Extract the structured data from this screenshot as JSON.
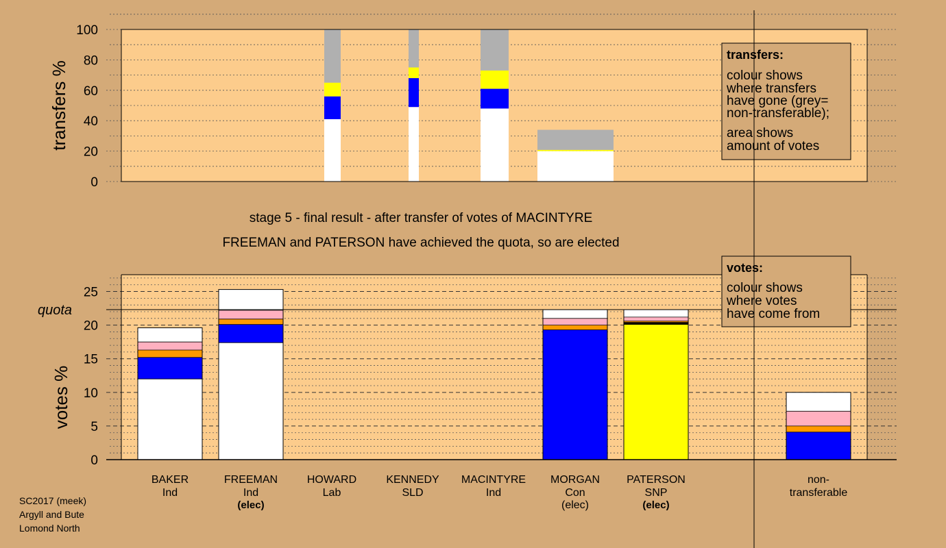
{
  "titles": {
    "stage": "stage 5 - final result - after transfer of votes of MACINTYRE",
    "elected": "FREEMAN and PATERSON have achieved the quota, so are elected"
  },
  "legend_transfers": {
    "title": "transfers:",
    "lines": [
      "colour shows",
      "where transfers",
      "have gone (grey=",
      "non-transferable);",
      "area shows",
      "amount of votes"
    ]
  },
  "legend_votes": {
    "title": "votes:",
    "lines": [
      "colour shows",
      "where votes",
      "have come from"
    ]
  },
  "footer": [
    "SC2017 (meek)",
    "Argyll and Bute",
    "Lomond North"
  ],
  "colors": {
    "background": "#d4aa78",
    "plot_bg": "#fccc8c",
    "white": "#ffffff",
    "pink": "#ffb0c0",
    "orange": "#ff9900",
    "blue": "#0000ff",
    "yellow": "#ffff00",
    "grey": "#b0b0b0",
    "black": "#000000"
  },
  "chart_data": [
    {
      "type": "bar",
      "stacked": true,
      "ylabel": "transfers %",
      "ylim": [
        0,
        100
      ],
      "yticks": [
        0,
        20,
        40,
        60,
        80,
        100
      ],
      "note": "bar width shows amount of votes transferred",
      "bars": [
        {
          "name": "HOWARD",
          "segments": [
            {
              "color": "white",
              "from": 0,
              "to": 41
            },
            {
              "color": "blue",
              "from": 41,
              "to": 56
            },
            {
              "color": "yellow",
              "from": 56,
              "to": 65
            },
            {
              "color": "grey",
              "from": 65,
              "to": 100
            }
          ]
        },
        {
          "name": "KENNEDY",
          "segments": [
            {
              "color": "white",
              "from": 0,
              "to": 49
            },
            {
              "color": "blue",
              "from": 49,
              "to": 68
            },
            {
              "color": "yellow",
              "from": 68,
              "to": 75
            },
            {
              "color": "grey",
              "from": 75,
              "to": 100
            }
          ]
        },
        {
          "name": "MACINTYRE",
          "segments": [
            {
              "color": "white",
              "from": 0,
              "to": 48
            },
            {
              "color": "blue",
              "from": 48,
              "to": 61
            },
            {
              "color": "yellow",
              "from": 61,
              "to": 73
            },
            {
              "color": "grey",
              "from": 73,
              "to": 100
            }
          ]
        },
        {
          "name": "MORGAN",
          "segments": [
            {
              "color": "white",
              "from": 0,
              "to": 20
            },
            {
              "color": "yellow",
              "from": 20,
              "to": 20.8
            },
            {
              "color": "grey",
              "from": 20.8,
              "to": 34
            }
          ]
        }
      ]
    },
    {
      "type": "bar",
      "stacked": true,
      "ylabel": "votes %",
      "ylim": [
        0,
        27.5
      ],
      "yticks": [
        0,
        5,
        10,
        15,
        20,
        25
      ],
      "quota": 22.3,
      "quota_label": "quota",
      "categories": [
        {
          "name": "BAKER",
          "party": "Ind",
          "status": "",
          "status_bold": false
        },
        {
          "name": "FREEMAN",
          "party": "Ind",
          "status": "(elec)",
          "status_bold": true
        },
        {
          "name": "HOWARD",
          "party": "Lab",
          "status": "",
          "status_bold": false
        },
        {
          "name": "KENNEDY",
          "party": "SLD",
          "status": "",
          "status_bold": false
        },
        {
          "name": "MACINTYRE",
          "party": "Ind",
          "status": "",
          "status_bold": false
        },
        {
          "name": "MORGAN",
          "party": "Con",
          "status": "(elec)",
          "status_bold": false
        },
        {
          "name": "PATERSON",
          "party": "SNP",
          "status": "(elec)",
          "status_bold": true
        },
        {
          "name": "non-",
          "party": "transferable",
          "status": "",
          "status_bold": false
        }
      ],
      "stacks": [
        [
          {
            "color": "white",
            "from": 0,
            "to": 12
          },
          {
            "color": "blue",
            "from": 12,
            "to": 15.2
          },
          {
            "color": "orange",
            "from": 15.2,
            "to": 16.3
          },
          {
            "color": "pink",
            "from": 16.3,
            "to": 17.5
          },
          {
            "color": "white",
            "from": 17.5,
            "to": 19.6
          }
        ],
        [
          {
            "color": "white",
            "from": 0,
            "to": 17.4
          },
          {
            "color": "blue",
            "from": 17.4,
            "to": 20.1
          },
          {
            "color": "orange",
            "from": 20.1,
            "to": 20.9
          },
          {
            "color": "pink",
            "from": 20.9,
            "to": 22.2
          },
          {
            "color": "white",
            "from": 22.2,
            "to": 25.3
          }
        ],
        [],
        [],
        [],
        [
          {
            "color": "blue",
            "from": 0,
            "to": 19.3
          },
          {
            "color": "orange",
            "from": 19.3,
            "to": 20.0
          },
          {
            "color": "pink",
            "from": 20.0,
            "to": 21.0
          },
          {
            "color": "white",
            "from": 21.0,
            "to": 22.3
          }
        ],
        [
          {
            "color": "yellow",
            "from": 0,
            "to": 20.1
          },
          {
            "color": "black",
            "from": 20.1,
            "to": 20.4
          },
          {
            "color": "orange",
            "from": 20.4,
            "to": 20.6
          },
          {
            "color": "pink",
            "from": 20.6,
            "to": 21.2
          },
          {
            "color": "white",
            "from": 21.2,
            "to": 22.3
          }
        ],
        [
          {
            "color": "blue",
            "from": 0,
            "to": 4.1
          },
          {
            "color": "orange",
            "from": 4.1,
            "to": 5.0
          },
          {
            "color": "pink",
            "from": 5.0,
            "to": 7.2
          },
          {
            "color": "white",
            "from": 7.2,
            "to": 10.0
          }
        ]
      ]
    }
  ]
}
